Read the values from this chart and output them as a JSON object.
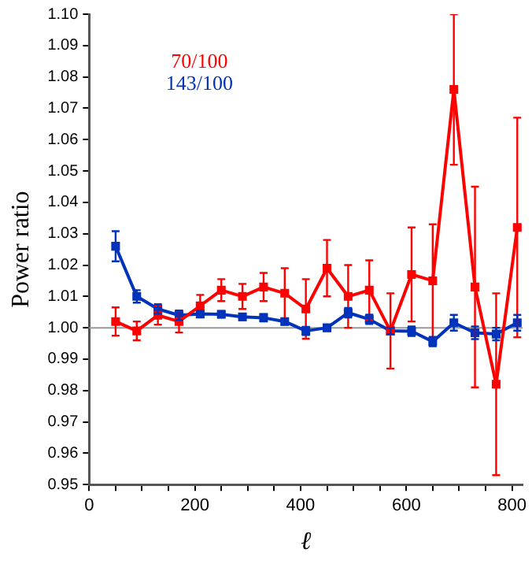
{
  "chart_data": {
    "type": "line",
    "xlabel": "ℓ",
    "ylabel": "Power ratio",
    "xlim": [
      0,
      820
    ],
    "ylim": [
      0.95,
      1.1
    ],
    "xticks": [
      0,
      {
        "value": 50,
        "label": null
      },
      {
        "value": 100,
        "label": null
      },
      {
        "value": 150,
        "label": null
      },
      200,
      {
        "value": 250,
        "label": null
      },
      {
        "value": 300,
        "label": null
      },
      {
        "value": 350,
        "label": null
      },
      400,
      {
        "value": 450,
        "label": null
      },
      {
        "value": 500,
        "label": null
      },
      {
        "value": 550,
        "label": null
      },
      600,
      {
        "value": 650,
        "label": null
      },
      {
        "value": 700,
        "label": null
      },
      {
        "value": 750,
        "label": null
      },
      800
    ],
    "yticks": [
      {
        "value": 0.95,
        "label": "0.95"
      },
      {
        "value": 0.96,
        "label": "0.96"
      },
      {
        "value": 0.97,
        "label": "0.97"
      },
      {
        "value": 0.98,
        "label": "0.98"
      },
      {
        "value": 0.99,
        "label": "0.99"
      },
      {
        "value": 1.0,
        "label": "1.00"
      },
      {
        "value": 1.01,
        "label": "1.01"
      },
      {
        "value": 1.02,
        "label": "1.02"
      },
      {
        "value": 1.03,
        "label": "1.03"
      },
      {
        "value": 1.04,
        "label": "1.04"
      },
      {
        "value": 1.05,
        "label": "1.05"
      },
      {
        "value": 1.06,
        "label": "1.06"
      },
      {
        "value": 1.07,
        "label": "1.07"
      },
      {
        "value": 1.08,
        "label": "1.08"
      },
      {
        "value": 1.09,
        "label": "1.09"
      },
      {
        "value": 1.1,
        "label": "1.10"
      }
    ],
    "x": [
      50,
      90,
      130,
      170,
      210,
      250,
      290,
      330,
      370,
      410,
      450,
      490,
      530,
      570,
      610,
      650,
      690,
      730,
      770,
      810
    ],
    "series": [
      {
        "name": "70/100",
        "color": "#ff0000",
        "values": [
          1.002,
          0.999,
          1.004,
          1.002,
          1.007,
          1.012,
          1.01,
          1.013,
          1.011,
          1.006,
          1.019,
          1.01,
          1.012,
          0.999,
          1.017,
          1.015,
          1.076,
          1.013,
          0.982,
          1.032
        ],
        "errors": [
          0.0045,
          0.003,
          0.003,
          0.0035,
          0.0035,
          0.0035,
          0.004,
          0.0045,
          0.008,
          0.0095,
          0.009,
          0.01,
          0.0095,
          0.012,
          0.015,
          0.018,
          0.024,
          0.032,
          0.029,
          0.035
        ]
      },
      {
        "name": "143/100",
        "color": "#0033bb",
        "values": [
          1.026,
          1.01,
          1.006,
          1.004,
          1.0044,
          1.0043,
          1.0035,
          1.0032,
          1.002,
          0.999,
          1.0,
          1.0048,
          1.0027,
          0.999,
          0.9989,
          0.9956,
          1.0016,
          0.9984,
          0.998,
          1.0016
        ],
        "errors": [
          0.0048,
          0.002,
          0.0015,
          0.0015,
          0.001,
          0.001,
          0.001,
          0.0012,
          0.001,
          0.0013,
          0.001,
          0.0015,
          0.0015,
          0.001,
          0.0015,
          0.0015,
          0.0025,
          0.002,
          0.002,
          0.0025
        ]
      }
    ],
    "ref_lines": [
      {
        "axis": "y",
        "value": 1.0,
        "color": "#999999"
      }
    ],
    "marker": "square",
    "line_style": "solid",
    "grid": false
  }
}
